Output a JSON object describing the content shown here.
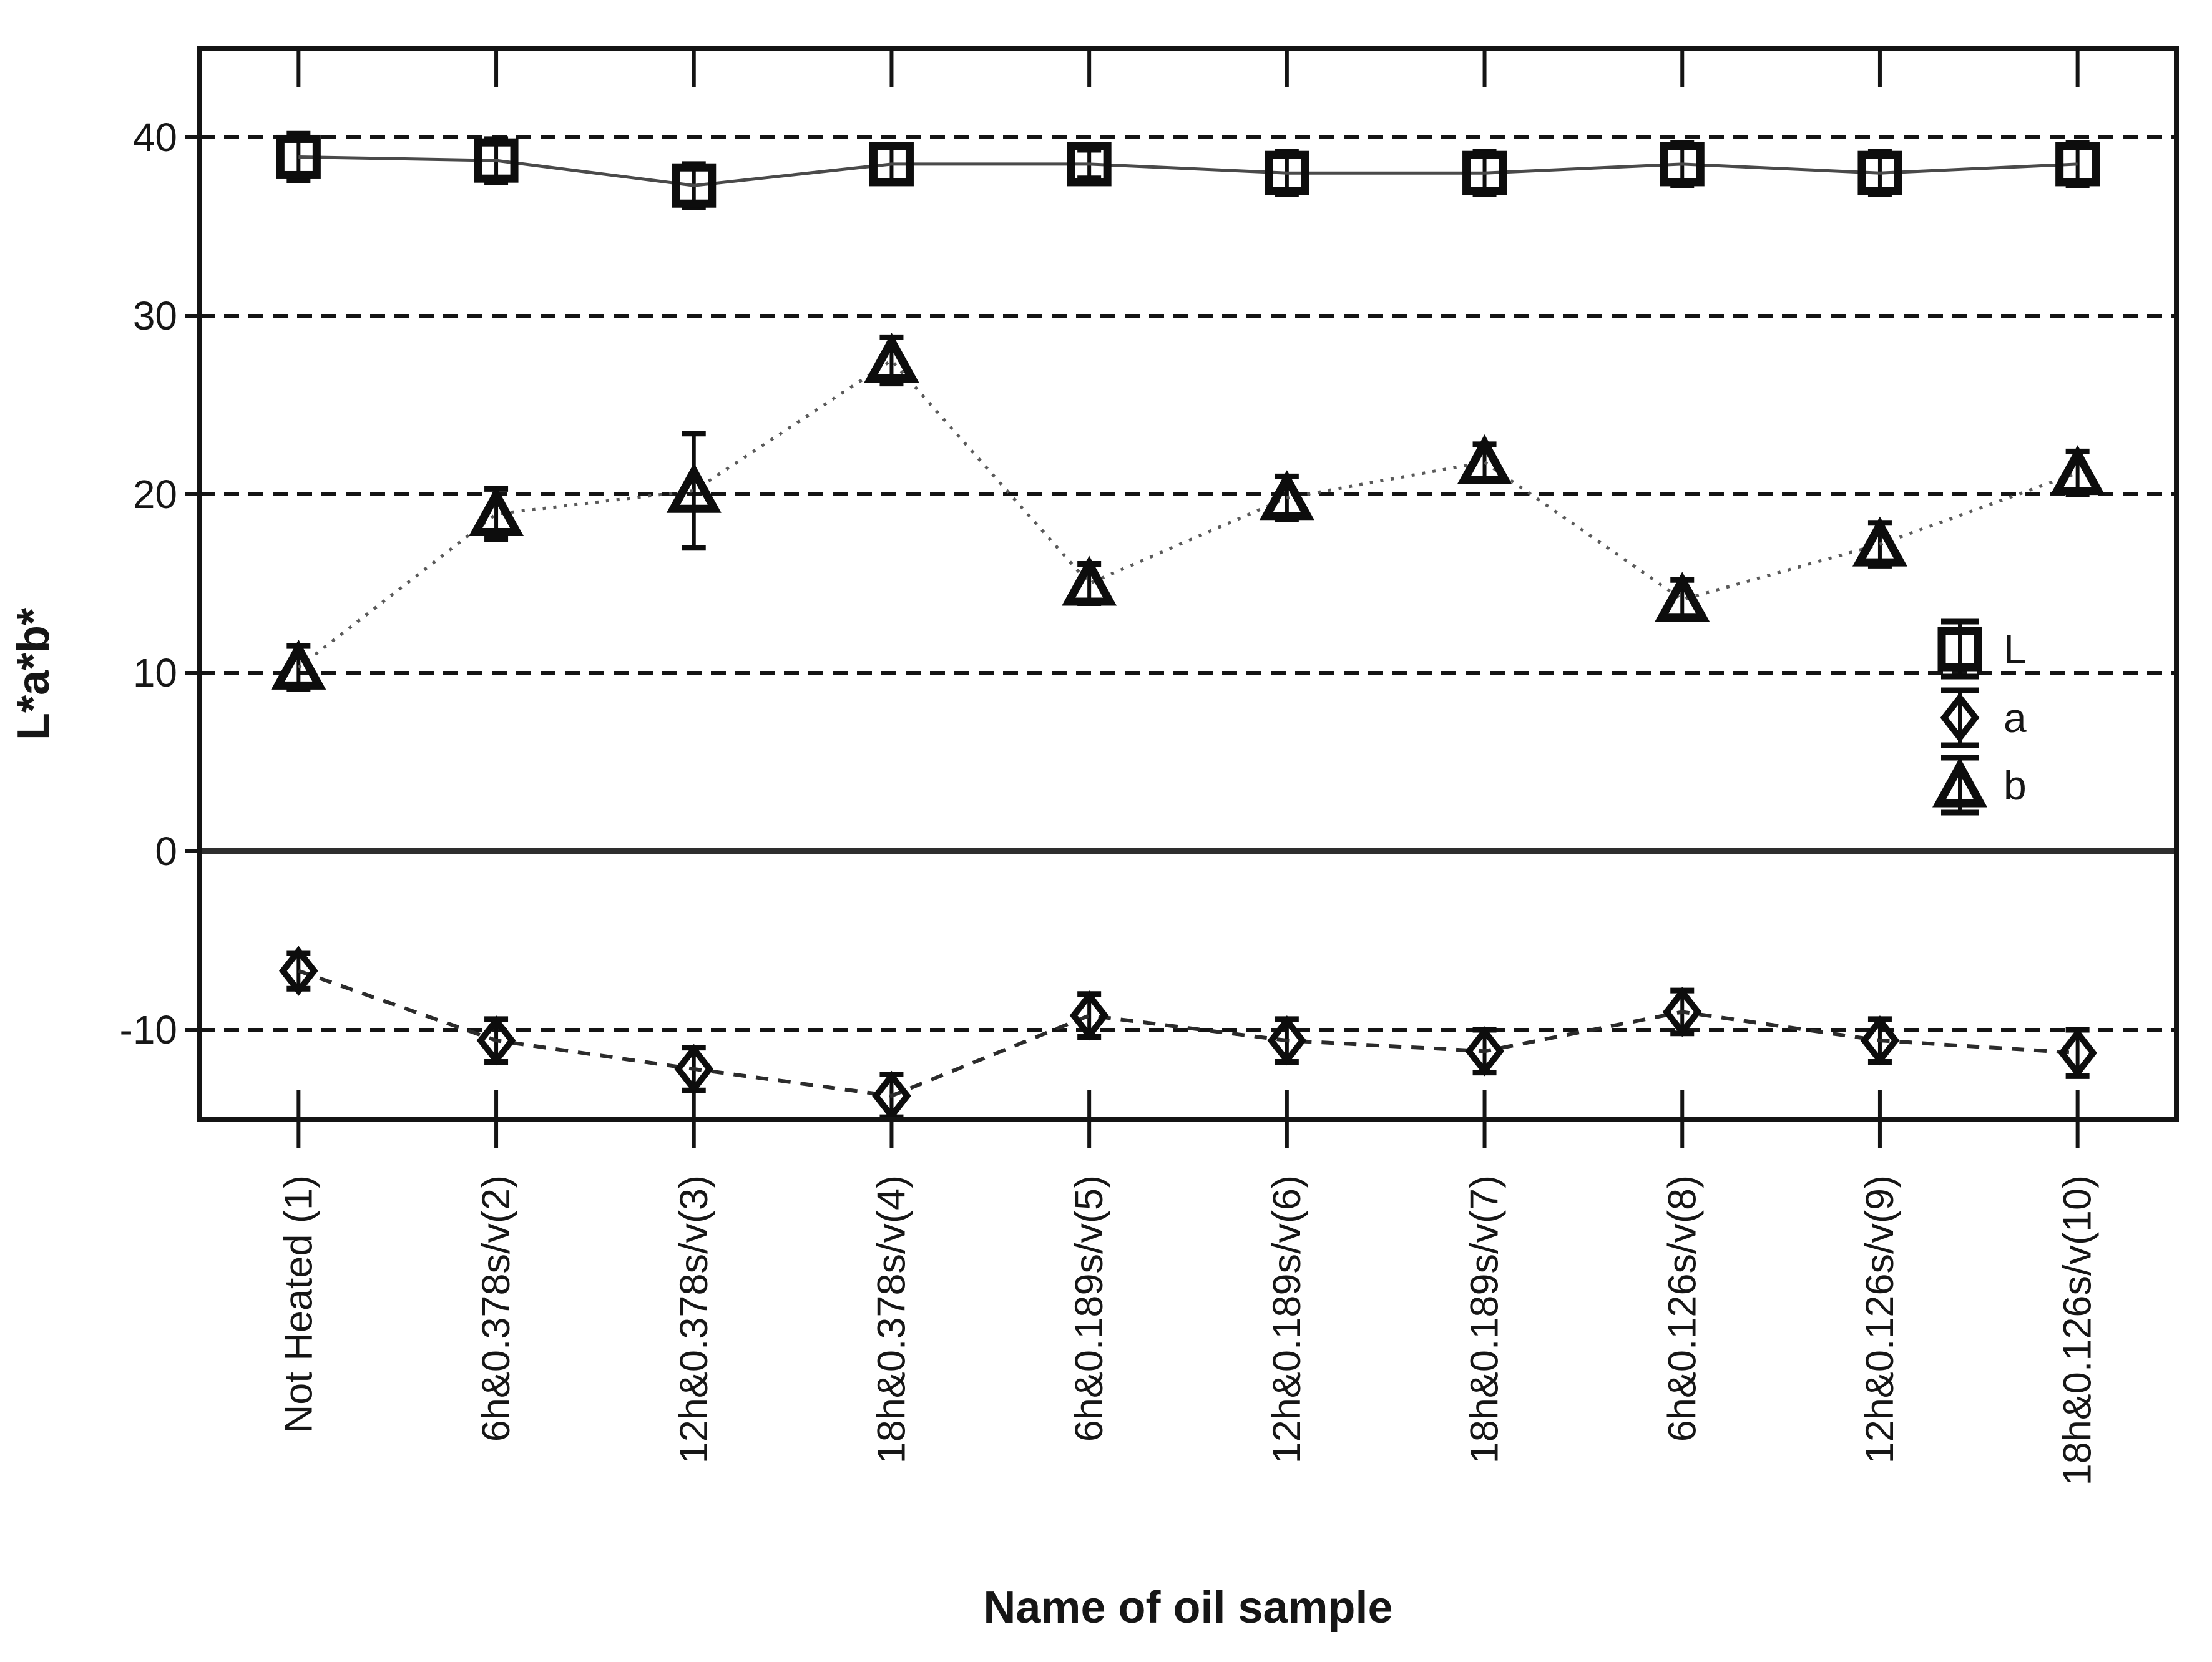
{
  "chart_data": {
    "type": "line",
    "title": "",
    "xlabel": "Name of oil sample",
    "ylabel": "L*a*b*",
    "categories": [
      "Not Heated (1)",
      "6h&0.378s/v(2)",
      "12h&0.378s/v(3)",
      "18h&0.378s/v(4)",
      "6h&0.189s/v(5)",
      "12h&0.189s/v(6)",
      "18h&0.189s/v(7)",
      "6h&0.126s/v(8)",
      "12h&0.126s/v(9)",
      "18h&0.126s/v(10)"
    ],
    "yticks": [
      40,
      30,
      20,
      10,
      0,
      -10
    ],
    "ylim": [
      -15,
      45
    ],
    "grid": "horizontal dashed lines at 40,30,20,10,-10; thick solid line at 0",
    "legend": {
      "position": "middle-right",
      "entries": [
        "L",
        "a",
        "b"
      ]
    },
    "series": [
      {
        "name": "L",
        "marker": "square",
        "line": "solid",
        "values": [
          38.9,
          38.7,
          37.3,
          38.5,
          38.5,
          38.0,
          38.0,
          38.5,
          38.0,
          38.5
        ],
        "errors": [
          1.3,
          1.2,
          1.2,
          1.0,
          0.8,
          1.2,
          1.2,
          1.2,
          1.2,
          1.2
        ]
      },
      {
        "name": "a",
        "marker": "diamond",
        "line": "dashed",
        "values": [
          -6.7,
          -10.6,
          -12.2,
          -13.7,
          -9.2,
          -10.6,
          -11.2,
          -9.0,
          -10.6,
          -11.3
        ],
        "errors": [
          1.0,
          1.2,
          1.2,
          1.2,
          1.2,
          1.2,
          1.2,
          1.2,
          1.2,
          1.3
        ]
      },
      {
        "name": "b",
        "marker": "triangle",
        "line": "dotted",
        "values": [
          10.3,
          18.9,
          20.2,
          27.5,
          15.0,
          19.8,
          21.8,
          14.1,
          17.2,
          21.2
        ],
        "errors": [
          1.2,
          1.4,
          3.2,
          1.3,
          1.1,
          1.2,
          1.0,
          1.1,
          1.2,
          1.2
        ]
      }
    ],
    "colors": {
      "axis": "#141414",
      "text": "#161616",
      "grid": "#141414",
      "zero_line": "#2e2e2e",
      "line_L": "#4a4a4a",
      "line_a": "#2b2b2b",
      "line_b": "#5a5a5a",
      "marker_stroke": "#0d0d0d"
    }
  }
}
